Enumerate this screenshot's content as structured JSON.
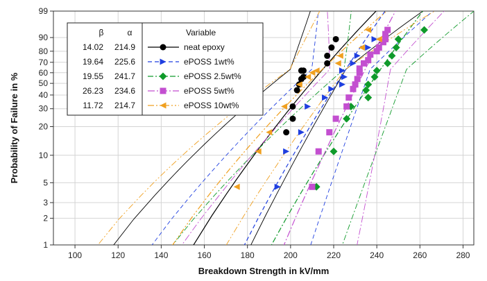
{
  "chart_data": {
    "type": "line",
    "title": "",
    "xlabel": "Breakdown Strength in kV/mm",
    "ylabel": "Probability of Failure in %",
    "xlim": [
      90,
      285
    ],
    "x_ticks": [
      100,
      120,
      140,
      160,
      180,
      200,
      220,
      240,
      260,
      280
    ],
    "y_scale": "weibull",
    "ylim": [
      1,
      99
    ],
    "y_ticks": [
      1,
      2,
      3,
      5,
      10,
      20,
      30,
      40,
      50,
      60,
      70,
      80,
      90,
      99
    ],
    "grid": true,
    "legend": {
      "position": "top-left",
      "headers": {
        "beta": "β",
        "alpha": "α",
        "variable": "Variable"
      }
    },
    "series": [
      {
        "name": "neat epoxy",
        "beta": "14.02",
        "alpha": "214.9",
        "color": "#000000",
        "marker": "circle",
        "dash": "",
        "points": [
          [
            198,
            17.5
          ],
          [
            201,
            24
          ],
          [
            201,
            31.5
          ],
          [
            203,
            44
          ],
          [
            204,
            49
          ],
          [
            205,
            54
          ],
          [
            205,
            62
          ],
          [
            206,
            56
          ],
          [
            206,
            62
          ],
          [
            217,
            69
          ],
          [
            217,
            76
          ],
          [
            219,
            83
          ],
          [
            221,
            89
          ]
        ]
      },
      {
        "name": "ePOSS 1wt%",
        "beta": "19.64",
        "alpha": "225.6",
        "color": "#1f3fe0",
        "marker": "triangle-right",
        "dash": "6,4",
        "points": [
          [
            194,
            4.5
          ],
          [
            198,
            11
          ],
          [
            205,
            17.5
          ],
          [
            208,
            31.5
          ],
          [
            216,
            38
          ],
          [
            219,
            45
          ],
          [
            224,
            49
          ],
          [
            225,
            56
          ],
          [
            224,
            62
          ],
          [
            229,
            69
          ],
          [
            231,
            76
          ],
          [
            236,
            83
          ],
          [
            239,
            89
          ]
        ]
      },
      {
        "name": "ePOSS 2.5wt%",
        "beta": "19.55",
        "alpha": "241.7",
        "color": "#0f9a2a",
        "marker": "diamond",
        "dash": "8,3,2,3",
        "points": [
          [
            212,
            4.5
          ],
          [
            220,
            11
          ],
          [
            226,
            24
          ],
          [
            228,
            31.5
          ],
          [
            236,
            38
          ],
          [
            235,
            44
          ],
          [
            236,
            49
          ],
          [
            239,
            56
          ],
          [
            240,
            62
          ],
          [
            245,
            69
          ],
          [
            247,
            76
          ],
          [
            249,
            83
          ],
          [
            250,
            89
          ],
          [
            262,
            94
          ]
        ]
      },
      {
        "name": "ePOSS 5wt%",
        "beta": "26.23",
        "alpha": "234.6",
        "color": "#c34fd0",
        "marker": "square",
        "dash": "10,3,2,3",
        "points": [
          [
            210,
            4.5
          ],
          [
            213,
            11
          ],
          [
            218,
            17.5
          ],
          [
            221,
            24
          ],
          [
            226,
            31.5
          ],
          [
            227,
            38
          ],
          [
            229,
            45
          ],
          [
            230,
            49
          ],
          [
            231,
            54
          ],
          [
            232,
            60
          ],
          [
            232,
            64
          ],
          [
            234,
            69
          ],
          [
            236,
            72
          ],
          [
            237,
            77
          ],
          [
            240,
            80
          ],
          [
            241,
            83
          ],
          [
            243,
            87
          ],
          [
            244,
            89
          ],
          [
            244,
            92
          ],
          [
            245,
            94
          ]
        ]
      },
      {
        "name": "ePOSS 10wt%",
        "beta": "11.72",
        "alpha": "214.7",
        "color": "#f0a020",
        "marker": "triangle-left",
        "dash": "9,3,2,3,2,3",
        "points": [
          [
            175,
            4.5
          ],
          [
            185,
            11
          ],
          [
            190,
            17.5
          ],
          [
            197,
            31.5
          ],
          [
            204,
            49
          ],
          [
            208,
            56
          ],
          [
            210,
            60
          ],
          [
            212,
            62
          ],
          [
            222,
            69
          ],
          [
            223,
            76
          ],
          [
            233,
            83
          ],
          [
            241,
            89
          ],
          [
            236,
            94
          ]
        ]
      }
    ]
  }
}
